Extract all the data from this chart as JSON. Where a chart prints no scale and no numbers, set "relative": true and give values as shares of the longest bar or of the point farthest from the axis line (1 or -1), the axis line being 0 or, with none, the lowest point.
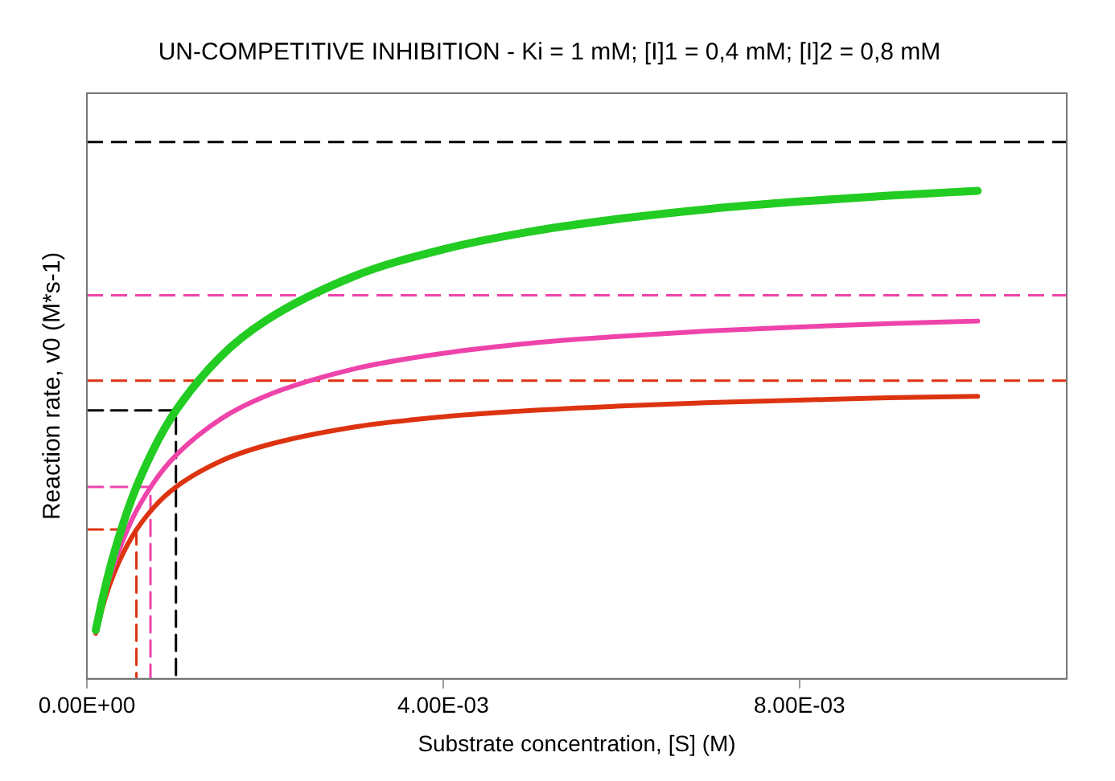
{
  "chart_data": {
    "type": "line",
    "title": "UN-COMPETITIVE INHIBITION - Ki = 1 mM; [I]1 = 0,4 mM; [I]2 = 0,8 mM",
    "xlabel": "Substrate concentration, [S] (M)",
    "ylabel": "Reaction rate, v0 (M*s-1)",
    "relative": true,
    "x": [
      0.0001,
      0.0002,
      0.0003,
      0.0005,
      0.00075,
      0.001,
      0.0015,
      0.002,
      0.003,
      0.004,
      0.005,
      0.006,
      0.007,
      0.008,
      0.009,
      0.01
    ],
    "xlim": [
      0,
      0.011
    ],
    "xticks": [
      {
        "value": 0,
        "label": "0.00E+00"
      },
      {
        "value": 0.004,
        "label": "4.00E-03"
      },
      {
        "value": 0.008,
        "label": "8.00E-03"
      }
    ],
    "tick_labels": "x",
    "grid": false,
    "legend": false,
    "marker": "none",
    "series": [
      {
        "color": "#22cc22",
        "values": [
          0.1,
          0.183,
          0.254,
          0.367,
          0.471,
          0.55,
          0.66,
          0.733,
          0.825,
          0.88,
          0.917,
          0.943,
          0.963,
          0.978,
          0.99,
          1.0
        ]
      },
      {
        "color": "#ee44aa",
        "values": [
          0.096,
          0.172,
          0.232,
          0.324,
          0.402,
          0.458,
          0.532,
          0.579,
          0.635,
          0.667,
          0.688,
          0.702,
          0.713,
          0.721,
          0.728,
          0.733
        ]
      },
      {
        "color": "#dd3311",
        "values": [
          0.093,
          0.162,
          0.214,
          0.289,
          0.351,
          0.393,
          0.446,
          0.478,
          0.516,
          0.537,
          0.55,
          0.559,
          0.566,
          0.571,
          0.576,
          0.579
        ]
      },
      {
        "color": "#000000",
        "line_style": "dashed",
        "x": [
          0,
          0.001,
          0.001
        ],
        "values": [
          0.55,
          0.55,
          0
        ]
      },
      {
        "color": "#ee44aa",
        "line_style": "dashed",
        "x": [
          0,
          0.000714,
          0.000714
        ],
        "values": [
          0.393,
          0.393,
          0
        ]
      },
      {
        "color": "#dd3311",
        "line_style": "dashed",
        "x": [
          0,
          0.000556,
          0.000556
        ],
        "values": [
          0.306,
          0.306,
          0
        ]
      }
    ],
    "ref_lines": [
      {
        "axis": "y",
        "value": 1.1,
        "color": "#000000",
        "line_style": "dashed"
      },
      {
        "axis": "y",
        "value": 0.786,
        "color": "#ee44aa",
        "line_style": "dashed"
      },
      {
        "axis": "y",
        "value": 0.611,
        "color": "#dd3311",
        "line_style": "dashed"
      }
    ]
  }
}
